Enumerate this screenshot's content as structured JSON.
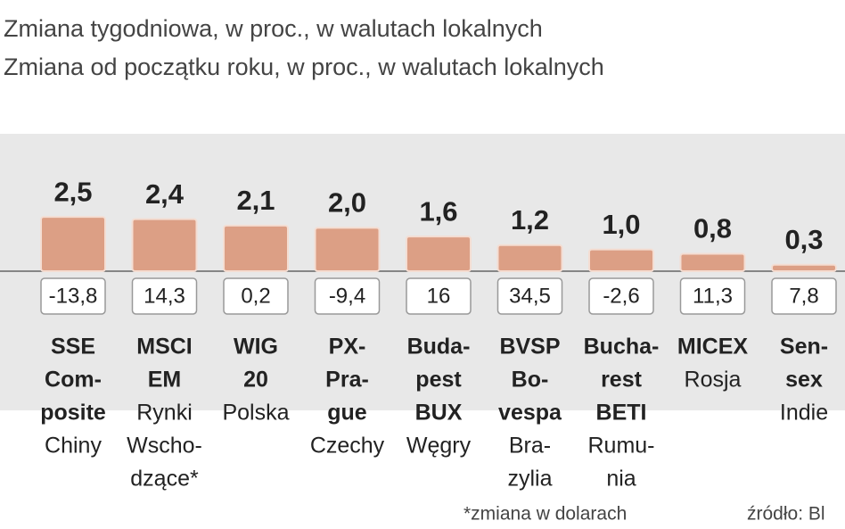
{
  "chart_data": {
    "type": "bar",
    "categories": [
      {
        "name": [
          "SSE",
          "Com-",
          "posite"
        ],
        "country": [
          "Chiny"
        ]
      },
      {
        "name": [
          "MSCI",
          "EM"
        ],
        "country": [
          "Rynki",
          "Wscho-",
          "dzące*"
        ]
      },
      {
        "name": [
          "WIG",
          "20"
        ],
        "country": [
          "Polska"
        ]
      },
      {
        "name": [
          "PX-",
          "Pra-",
          "gue"
        ],
        "country": [
          "Czechy"
        ]
      },
      {
        "name": [
          "Buda-",
          "pest",
          "BUX"
        ],
        "country": [
          "Węgry"
        ]
      },
      {
        "name": [
          "BVSP",
          "Bo-",
          "vespa"
        ],
        "country": [
          "Bra-",
          "zylia"
        ]
      },
      {
        "name": [
          "Bucha-",
          "rest",
          "BETI"
        ],
        "country": [
          "Rumu-",
          "nia"
        ]
      },
      {
        "name": [
          "MICEX"
        ],
        "country": [
          "Rosja"
        ]
      },
      {
        "name": [
          "Sen-",
          "sex"
        ],
        "country": [
          "Indie"
        ]
      }
    ],
    "series": [
      {
        "name": "Zmiana tygodniowa, w proc., w walutach lokalnych",
        "color": "#dc9f85",
        "values": [
          2.5,
          2.4,
          2.1,
          2.0,
          1.6,
          1.2,
          1.0,
          0.8,
          0.3
        ],
        "value_labels": [
          "2,5",
          "2,4",
          "2,1",
          "2,0",
          "1,6",
          "1,2",
          "1,0",
          "0,8",
          "0,3"
        ]
      },
      {
        "name": "Zmiana od początku roku, w proc., w walutach lokalnych",
        "values": [
          -13.8,
          14.3,
          0.2,
          -9.4,
          16,
          34.5,
          -2.6,
          11.3,
          7.8
        ],
        "value_labels": [
          "-13,8",
          "14,3",
          "0,2",
          "-9,4",
          "16",
          "34,5",
          "-2,6",
          "11,3",
          "7,8"
        ]
      }
    ],
    "ylim": [
      0,
      3
    ],
    "notes": [
      "*zmiana w dolarach",
      "źródło: Bl"
    ]
  }
}
